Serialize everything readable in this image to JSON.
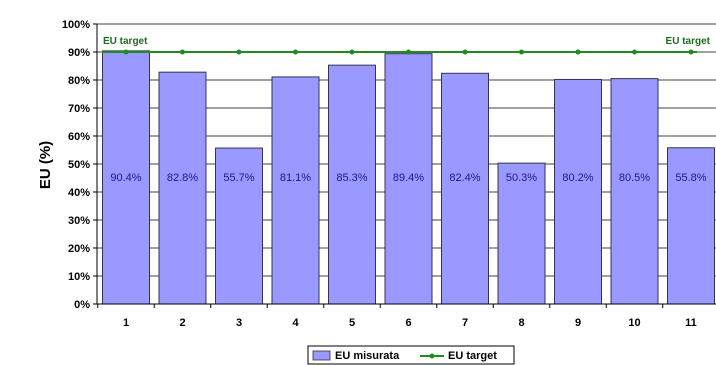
{
  "chart_data": {
    "type": "bar",
    "ylabel": "EU (%)",
    "xlabel": "",
    "ylim": [
      0,
      100
    ],
    "yticks": [
      "0%",
      "10%",
      "20%",
      "30%",
      "40%",
      "50%",
      "60%",
      "70%",
      "80%",
      "90%",
      "100%"
    ],
    "categories": [
      "1",
      "2",
      "3",
      "4",
      "5",
      "6",
      "7",
      "8",
      "9",
      "10",
      "11"
    ],
    "series": [
      {
        "name": "EU misurata",
        "kind": "bar",
        "color": "#9999ff",
        "values": [
          90.4,
          82.8,
          55.7,
          81.1,
          85.3,
          89.4,
          82.4,
          50.3,
          80.2,
          80.5,
          55.8
        ],
        "labels": [
          "90.4%",
          "82.8%",
          "55.7%",
          "81.1%",
          "85.3%",
          "89.4%",
          "82.4%",
          "50.3%",
          "80.2%",
          "80.5%",
          "55.8%"
        ]
      },
      {
        "name": "EU target",
        "kind": "line",
        "color": "#1e8c1e",
        "values": [
          90,
          90,
          90,
          90,
          90,
          90,
          90,
          90,
          90,
          90,
          90
        ]
      }
    ],
    "annotations": [
      "EU target",
      "EU target"
    ],
    "grid": true,
    "legend_position": "bottom"
  }
}
